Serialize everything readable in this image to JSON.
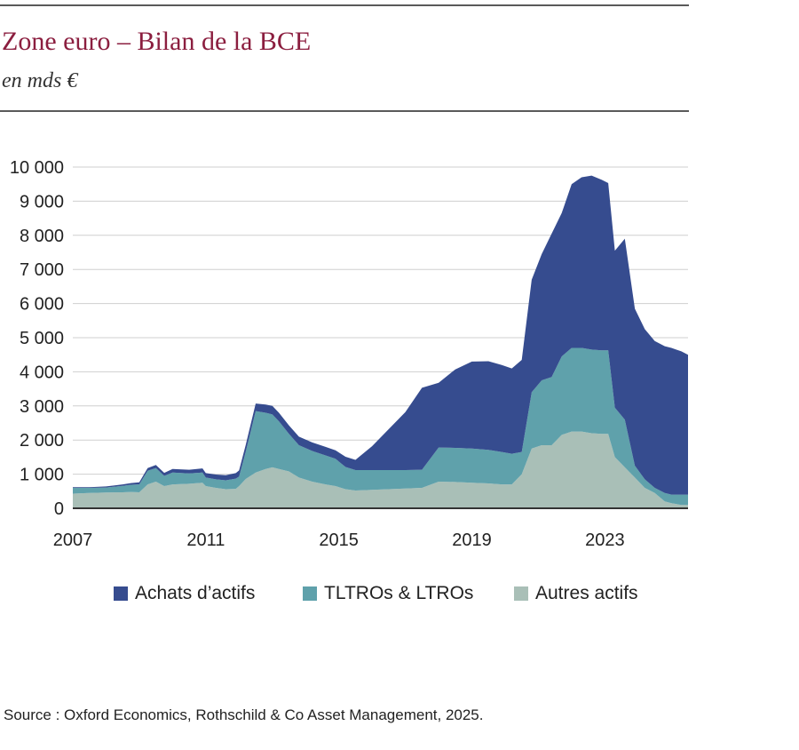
{
  "header": {
    "title": "Zone euro –  Bilan de la BCE",
    "subtitle": "en mds €"
  },
  "source": "Source : Oxford Economics, Rothschild & Co Asset Management, 2025.",
  "colors": {
    "achats": "#364c8f",
    "tltros": "#5fa1ab",
    "autres": "#a9bfb7",
    "grid": "#cfcfcf",
    "axis": "#333333",
    "title": "#8b1e3f"
  },
  "chart_data": {
    "type": "area",
    "stacked": true,
    "title": "Zone euro –  Bilan de la BCE",
    "ylabel": "en mds €",
    "xlabel": "",
    "xlim": [
      2007,
      2025.5
    ],
    "ylim": [
      0,
      10000
    ],
    "yticks": [
      0,
      1000,
      2000,
      3000,
      4000,
      5000,
      6000,
      7000,
      8000,
      9000,
      10000
    ],
    "ytick_labels": [
      "0",
      "1 000",
      "2 000",
      "3 000",
      "4 000",
      "5 000",
      "6 000",
      "7 000",
      "8 000",
      "9 000",
      "10 000"
    ],
    "xticks": [
      2007,
      2011,
      2015,
      2019,
      2023
    ],
    "xtick_labels": [
      "2007",
      "2011",
      "2015",
      "2019",
      "2023"
    ],
    "grid": true,
    "legend": "bottom",
    "x": [
      2007.0,
      2007.5,
      2008.0,
      2008.5,
      2008.75,
      2009.0,
      2009.25,
      2009.5,
      2009.75,
      2010.0,
      2010.5,
      2010.9,
      2011.0,
      2011.3,
      2011.6,
      2011.9,
      2012.0,
      2012.2,
      2012.5,
      2012.8,
      2013.0,
      2013.2,
      2013.5,
      2013.8,
      2014.2,
      2014.6,
      2014.9,
      2015.2,
      2015.5,
      2016.0,
      2016.5,
      2017.0,
      2017.5,
      2018.0,
      2018.5,
      2019.0,
      2019.5,
      2019.9,
      2020.2,
      2020.5,
      2020.8,
      2021.1,
      2021.4,
      2021.7,
      2022.0,
      2022.3,
      2022.6,
      2022.9,
      2023.1,
      2023.3,
      2023.6,
      2023.9,
      2024.2,
      2024.5,
      2024.8,
      2025.0,
      2025.3,
      2025.5
    ],
    "series": [
      {
        "name": "Autres actifs",
        "values": [
          430,
          450,
          460,
          470,
          480,
          470,
          700,
          780,
          650,
          700,
          720,
          750,
          650,
          600,
          560,
          570,
          650,
          860,
          1050,
          1150,
          1200,
          1150,
          1080,
          900,
          780,
          700,
          650,
          560,
          520,
          540,
          560,
          580,
          600,
          780,
          770,
          750,
          730,
          700,
          700,
          1000,
          1750,
          1850,
          1850,
          2150,
          2250,
          2250,
          2200,
          2180,
          2180,
          1500,
          1200,
          900,
          600,
          450,
          200,
          150,
          100,
          100
        ]
      },
      {
        "name": "TLTROs & LTROs",
        "values": [
          170,
          150,
          150,
          190,
          210,
          230,
          400,
          400,
          300,
          350,
          300,
          300,
          250,
          250,
          260,
          300,
          280,
          800,
          1800,
          1650,
          1550,
          1400,
          1100,
          950,
          900,
          850,
          800,
          650,
          600,
          580,
          560,
          540,
          530,
          1000,
          1000,
          1000,
          980,
          950,
          900,
          650,
          1650,
          1900,
          2000,
          2300,
          2450,
          2450,
          2450,
          2450,
          2450,
          1450,
          1400,
          350,
          250,
          150,
          250,
          250,
          300,
          300
        ]
      },
      {
        "name": "Achats d’actifs",
        "values": [
          20,
          20,
          30,
          40,
          50,
          60,
          80,
          90,
          90,
          100,
          110,
          120,
          130,
          140,
          150,
          160,
          180,
          200,
          220,
          240,
          250,
          250,
          250,
          250,
          250,
          250,
          250,
          300,
          300,
          700,
          1200,
          1700,
          2400,
          1900,
          2300,
          2550,
          2600,
          2550,
          2500,
          2700,
          3300,
          3700,
          4200,
          4200,
          4800,
          5000,
          5100,
          5000,
          4900,
          4600,
          5300,
          4600,
          4400,
          4300,
          4300,
          4300,
          4200,
          4100
        ]
      }
    ]
  }
}
